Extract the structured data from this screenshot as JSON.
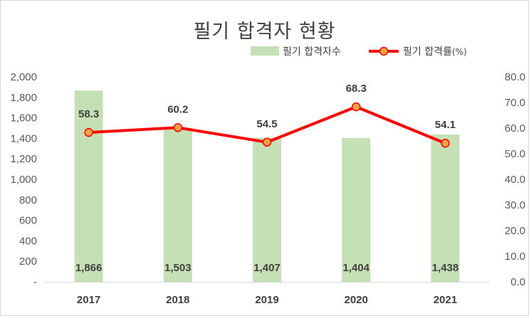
{
  "chart_data": {
    "type": "bar+line",
    "title": "필기 합격자 현황",
    "categories": [
      "2017",
      "2018",
      "2019",
      "2020",
      "2021"
    ],
    "series": [
      {
        "name": "필기 합격자수",
        "type": "bar",
        "axis": "left",
        "color": "#c5e0b4",
        "values": [
          1866,
          1503,
          1407,
          1404,
          1438
        ],
        "labels": [
          "1,866",
          "1,503",
          "1,407",
          "1,404",
          "1,438"
        ]
      },
      {
        "name": "필기 합격률(%)",
        "type": "line",
        "axis": "right",
        "color": "#ff0000",
        "marker_color": "#f4a442",
        "values": [
          58.3,
          60.2,
          54.5,
          68.3,
          54.1
        ],
        "labels": [
          "58.3",
          "60.2",
          "54.5",
          "68.3",
          "54.1"
        ]
      }
    ],
    "y_left": {
      "min": 0,
      "max": 2000,
      "step": 200,
      "tick_labels": [
        "-",
        "200",
        "400",
        "600",
        "800",
        "1,000",
        "1,200",
        "1,400",
        "1,600",
        "1,800",
        "2,000"
      ]
    },
    "y_right": {
      "min": 0,
      "max": 80,
      "step": 10,
      "tick_labels": [
        "0.0",
        "10.0",
        "20.0",
        "30.0",
        "40.0",
        "50.0",
        "60.0",
        "70.0",
        "80.0"
      ]
    },
    "legend": {
      "placement": "top-right",
      "bar_label": "필기 합격자수",
      "line_label_main": "필기 합격률",
      "line_label_suffix": "(%)"
    },
    "grid": false
  }
}
